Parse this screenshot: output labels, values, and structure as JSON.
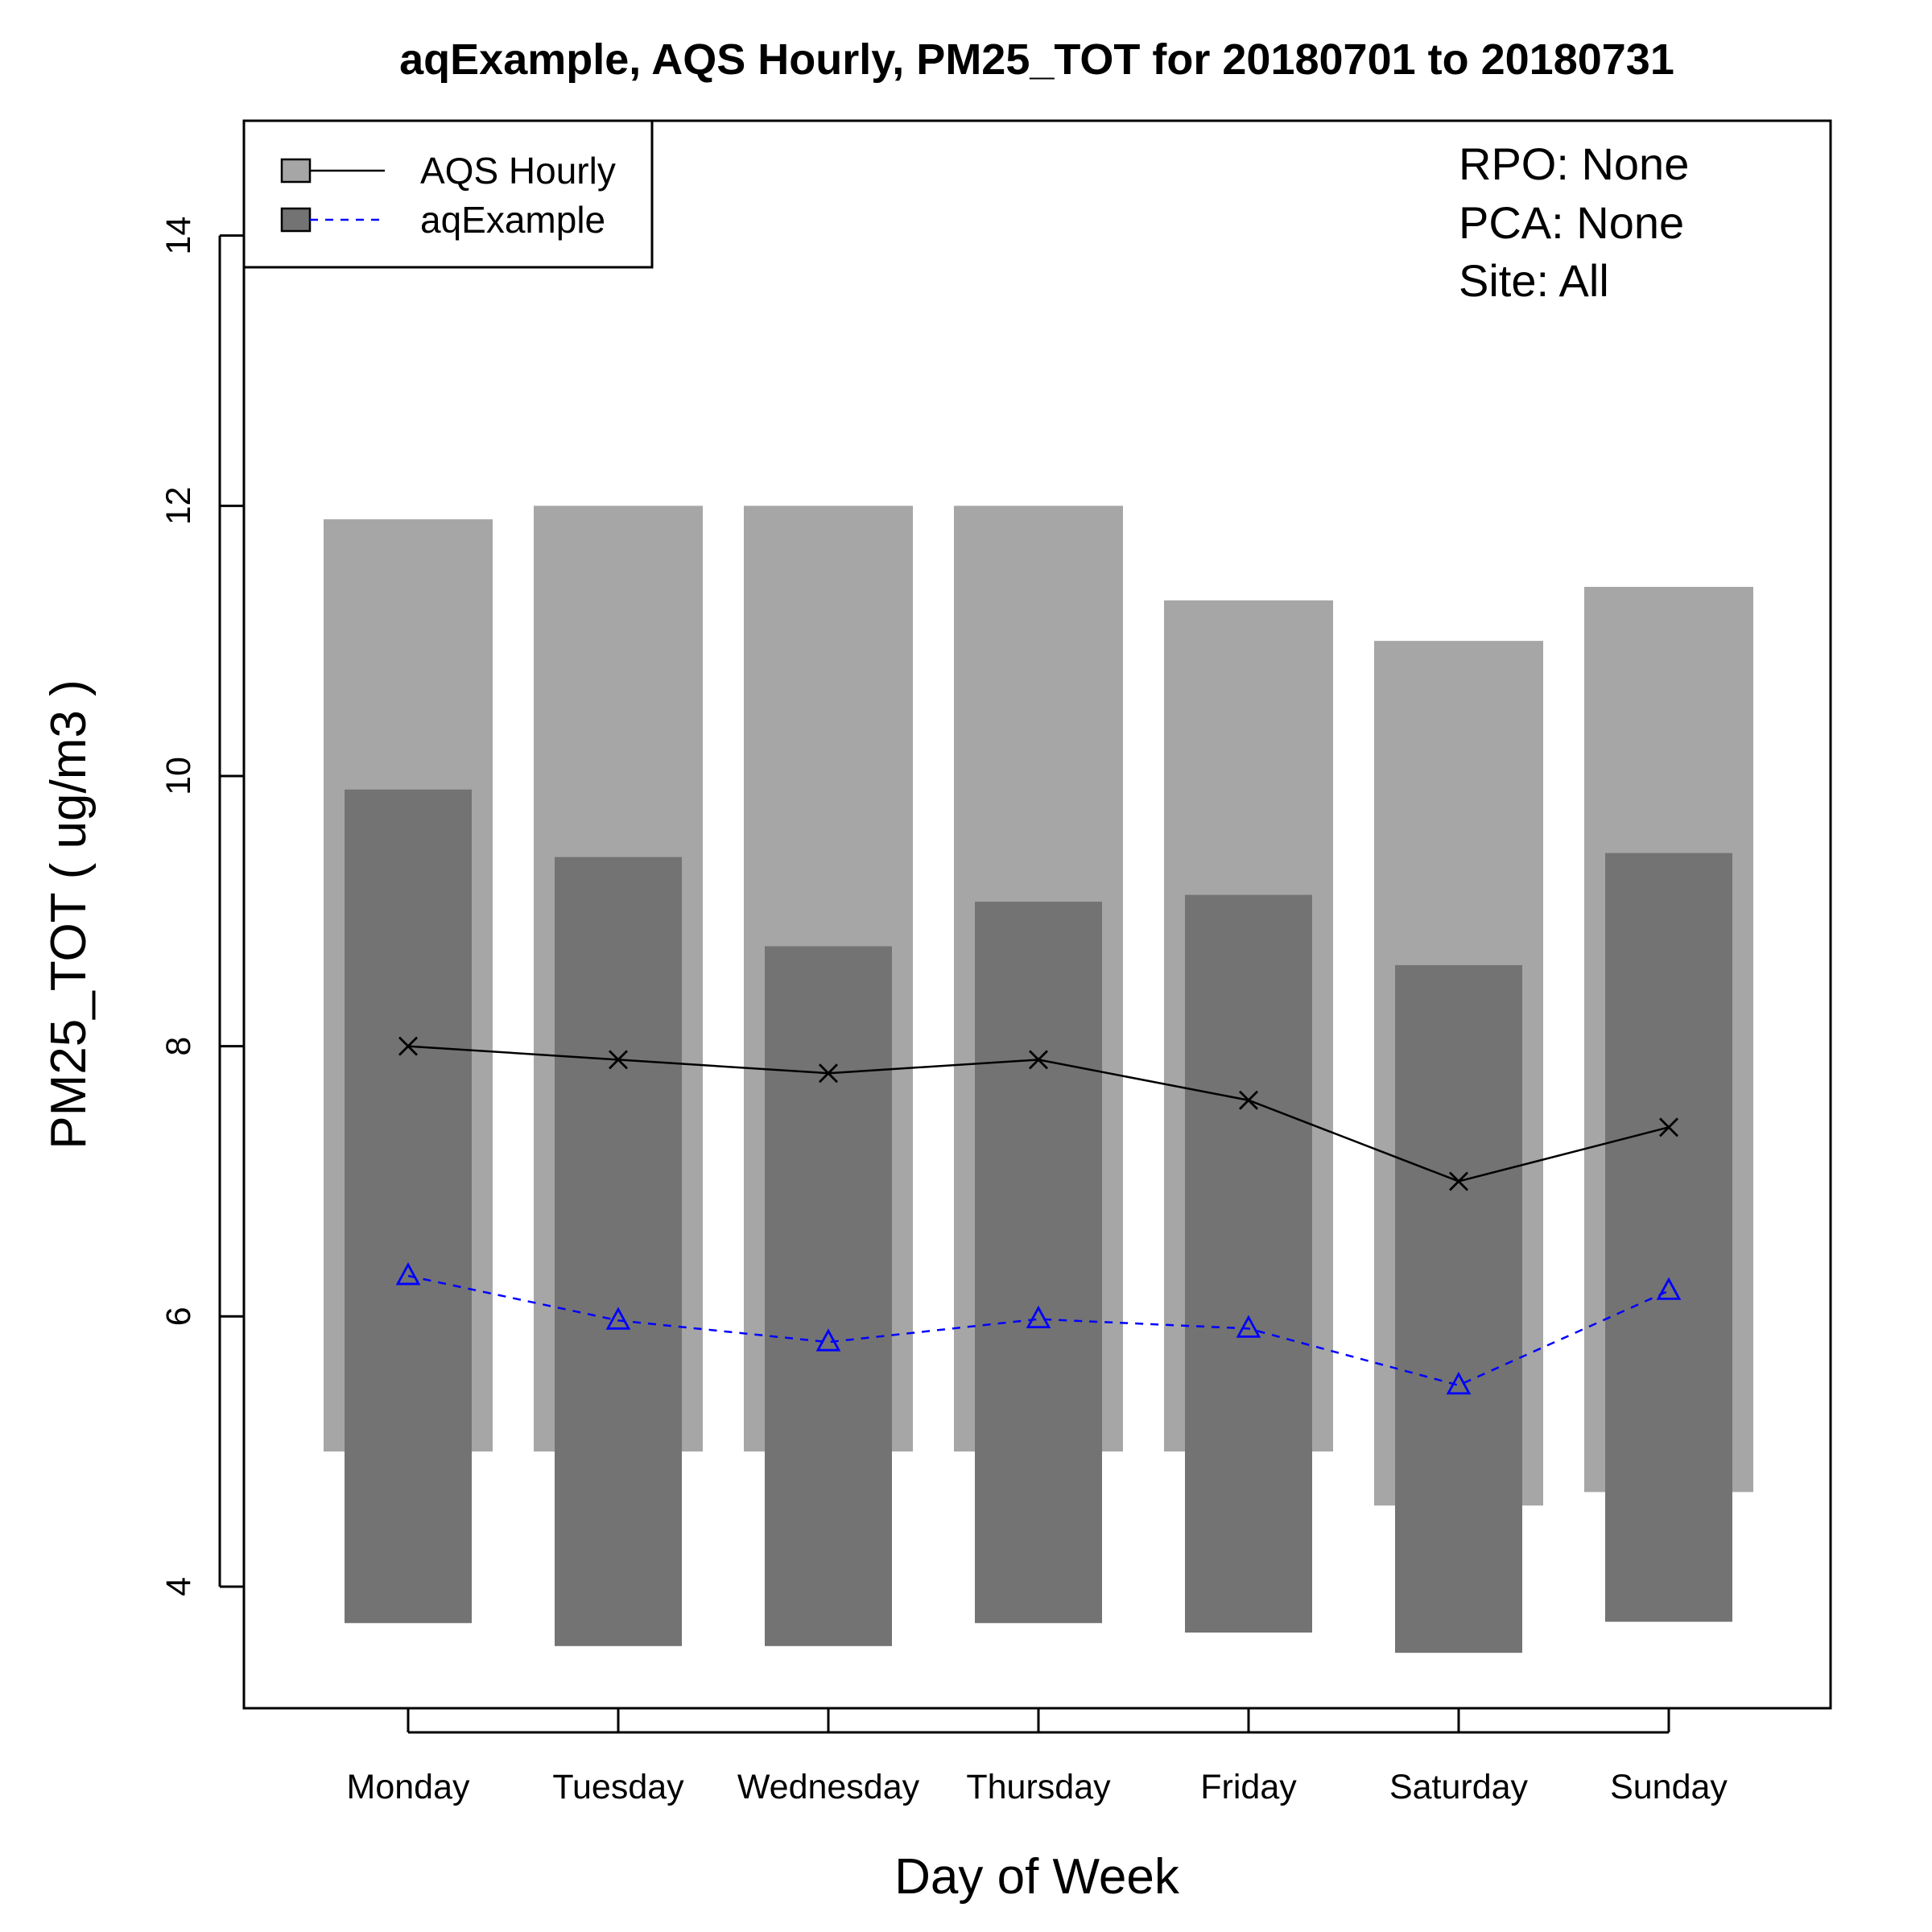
{
  "chart_data": {
    "type": "bar",
    "title": "aqExample, AQS Hourly, PM25_TOT for 20180701 to 20180731",
    "xlabel": "Day of Week",
    "ylabel": "PM25_TOT ( ug/m3 )",
    "categories": [
      "Monday",
      "Tuesday",
      "Wednesday",
      "Thursday",
      "Friday",
      "Saturday",
      "Sunday"
    ],
    "ylim": [
      3.1,
      14.85
    ],
    "yticks": [
      "4",
      "6",
      "8",
      "10",
      "12",
      "14"
    ],
    "grid": false,
    "legend_position": "top-left",
    "series": [
      {
        "name": "AQS Hourly",
        "bar_color": "#a6a6a6",
        "line_color": "#000000",
        "marker": "x",
        "line_style": "solid",
        "range_low": [
          5.0,
          5.0,
          5.0,
          5.0,
          5.0,
          4.6,
          4.7
        ],
        "range_high": [
          11.9,
          12.0,
          12.0,
          12.0,
          11.3,
          11.0,
          11.4
        ],
        "values": [
          8.0,
          7.9,
          7.8,
          7.9,
          7.6,
          7.0,
          7.4
        ]
      },
      {
        "name": "aqExample",
        "bar_color": "#737373",
        "line_color": "#0000ff",
        "marker": "triangle",
        "line_style": "dashed",
        "range_low": [
          3.73,
          3.56,
          3.56,
          3.73,
          3.66,
          3.51,
          3.74
        ],
        "range_high": [
          9.9,
          9.4,
          8.74,
          9.07,
          9.12,
          8.6,
          9.43
        ],
        "values": [
          6.3,
          5.97,
          5.81,
          5.98,
          5.91,
          5.49,
          6.19
        ]
      }
    ],
    "annotations": [
      "RPO: None",
      "PCA: None",
      "Site: All"
    ]
  }
}
